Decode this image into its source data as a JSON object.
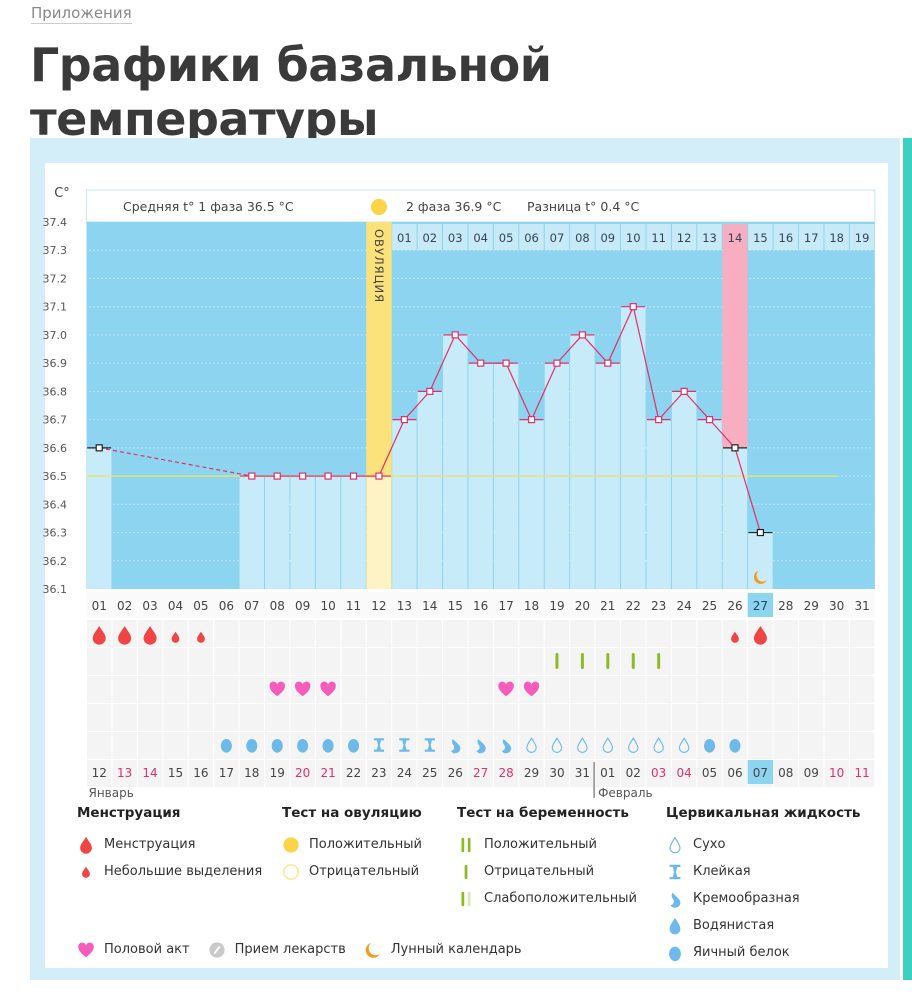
{
  "breadcrumb": "Приложения",
  "page_title": "Графики базальной температуры",
  "header": {
    "phase1": "Средняя t° 1 фаза 36.5 °C",
    "phase2": "2 фаза 36.9 °C",
    "diff": "Разница t° 0.4 °C",
    "ovulation_label": "ОВУЛЯЦИЯ"
  },
  "colors": {
    "background": "#8dd4f0",
    "bar": "#c8ebfa",
    "ovulation": "#fbe27a",
    "highlight_pink": "#f7aec0",
    "line": "#e0306a",
    "coverline": "#e6e27a",
    "accent_teal": "#3cd0c0"
  },
  "chart_data": {
    "type": "line",
    "ylabel": "C°",
    "ylim": [
      36.1,
      37.4
    ],
    "yticks": [
      "37.4",
      "37.3",
      "37.2",
      "37.1",
      "37.0",
      "36.9",
      "36.8",
      "36.7",
      "36.6",
      "36.5",
      "36.4",
      "36.3",
      "36.2",
      "36.1"
    ],
    "grid": true,
    "cycle_days": [
      "01",
      "02",
      "03",
      "04",
      "05",
      "06",
      "07",
      "08",
      "09",
      "10",
      "11",
      "12",
      "13",
      "14",
      "15",
      "16",
      "17",
      "18",
      "19",
      "20",
      "21",
      "22",
      "23",
      "24",
      "25",
      "26",
      "27",
      "28",
      "29",
      "30",
      "31"
    ],
    "temperatures": [
      36.6,
      null,
      null,
      null,
      null,
      null,
      36.5,
      36.5,
      36.5,
      36.5,
      36.5,
      36.5,
      36.7,
      36.8,
      37.0,
      36.9,
      36.9,
      36.7,
      36.9,
      37.0,
      36.9,
      37.1,
      36.7,
      36.8,
      36.7,
      36.6,
      36.3,
      null,
      null,
      null,
      null
    ],
    "coverline": 36.5,
    "ovulation_day": 12,
    "current_day": 27,
    "luteal_days": [
      "01",
      "02",
      "03",
      "04",
      "05",
      "06",
      "07",
      "08",
      "09",
      "10",
      "11",
      "12",
      "13",
      "14",
      "15",
      "16",
      "17",
      "18",
      "19"
    ],
    "highlighted_luteal_day": "14",
    "dates": [
      "12",
      "13",
      "14",
      "15",
      "16",
      "17",
      "18",
      "19",
      "20",
      "21",
      "22",
      "23",
      "24",
      "25",
      "26",
      "27",
      "28",
      "29",
      "30",
      "31",
      "01",
      "02",
      "03",
      "04",
      "05",
      "06",
      "07",
      "08",
      "09",
      "10",
      "11"
    ],
    "weekend_dates": [
      2,
      3,
      9,
      10,
      16,
      17,
      23,
      24,
      30,
      31
    ],
    "months": [
      "Январь",
      "Февраль"
    ],
    "menstruation": {
      "1": "heavy",
      "2": "heavy",
      "3": "heavy",
      "4": "light",
      "5": "light",
      "26": "light",
      "27": "heavy"
    },
    "pregnancy_test": {
      "19": "negative",
      "20": "negative",
      "21": "negative",
      "22": "negative",
      "23": "negative"
    },
    "intercourse": [
      8,
      9,
      10,
      17,
      18
    ],
    "cervical_fluid": {
      "6": "egg-white",
      "7": "egg-white",
      "8": "egg-white",
      "9": "egg-white",
      "10": "egg-white",
      "11": "egg-white",
      "12": "sticky",
      "13": "sticky",
      "14": "sticky",
      "15": "creamy",
      "16": "creamy",
      "17": "creamy",
      "18": "dry",
      "19": "dry",
      "20": "dry",
      "21": "dry",
      "22": "dry",
      "23": "dry",
      "24": "dry",
      "25": "egg-white",
      "26": "egg-white"
    },
    "lunar": {
      "27": "moon"
    }
  },
  "legend": {
    "menstruation": {
      "title": "Менструация",
      "items": [
        "Менструация",
        "Небольшие выделения"
      ]
    },
    "ovulation_test": {
      "title": "Тест на овуляцию",
      "items": [
        "Положительный",
        "Отрицательный"
      ]
    },
    "pregnancy_test": {
      "title": "Тест на беременность",
      "items": [
        "Положительный",
        "Отрицательный",
        "Слабоположительный"
      ]
    },
    "cervical": {
      "title": "Цервикальная жидкость",
      "items": [
        "Сухо",
        "Клейкая",
        "Кремообразная",
        "Водянистая",
        "Яичный белок"
      ]
    },
    "other": [
      "Половой акт",
      "Прием лекарств",
      "Лунный календарь"
    ]
  }
}
